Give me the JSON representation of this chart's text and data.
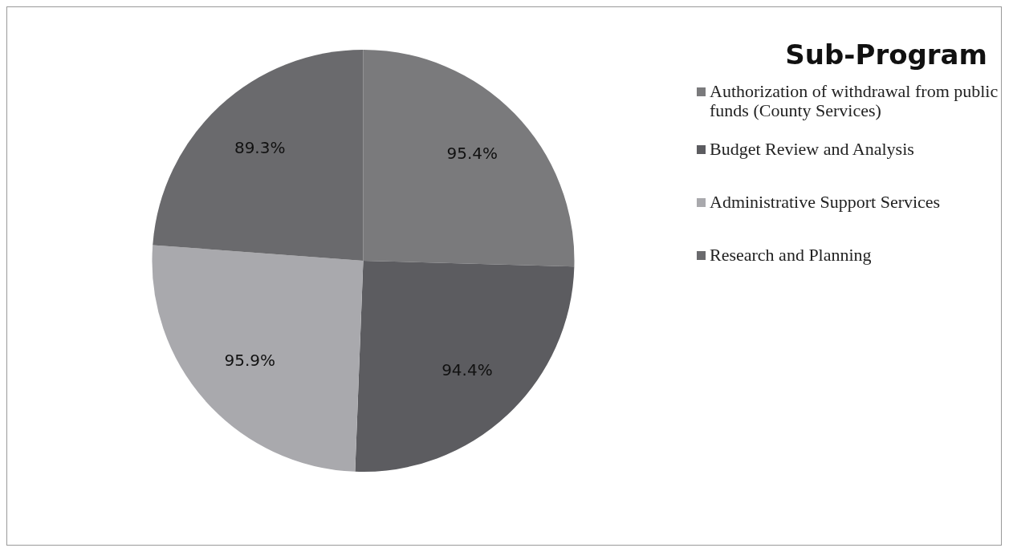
{
  "chart_data": {
    "type": "pie",
    "legend_title": "Sub-Program",
    "categories": [
      "Authorization of withdrawal from public funds (County Services)",
      "Budget Review and Analysis",
      "Administrative Support Services",
      "Research and Planning"
    ],
    "values": [
      95.4,
      94.4,
      95.9,
      89.3
    ],
    "colors": [
      "#7a7a7c",
      "#5c5c60",
      "#a9a9ad",
      "#6a6a6d"
    ],
    "value_labels": [
      "95.4%",
      "94.4%",
      "95.9%",
      "89.3%"
    ],
    "legend": "top right"
  }
}
